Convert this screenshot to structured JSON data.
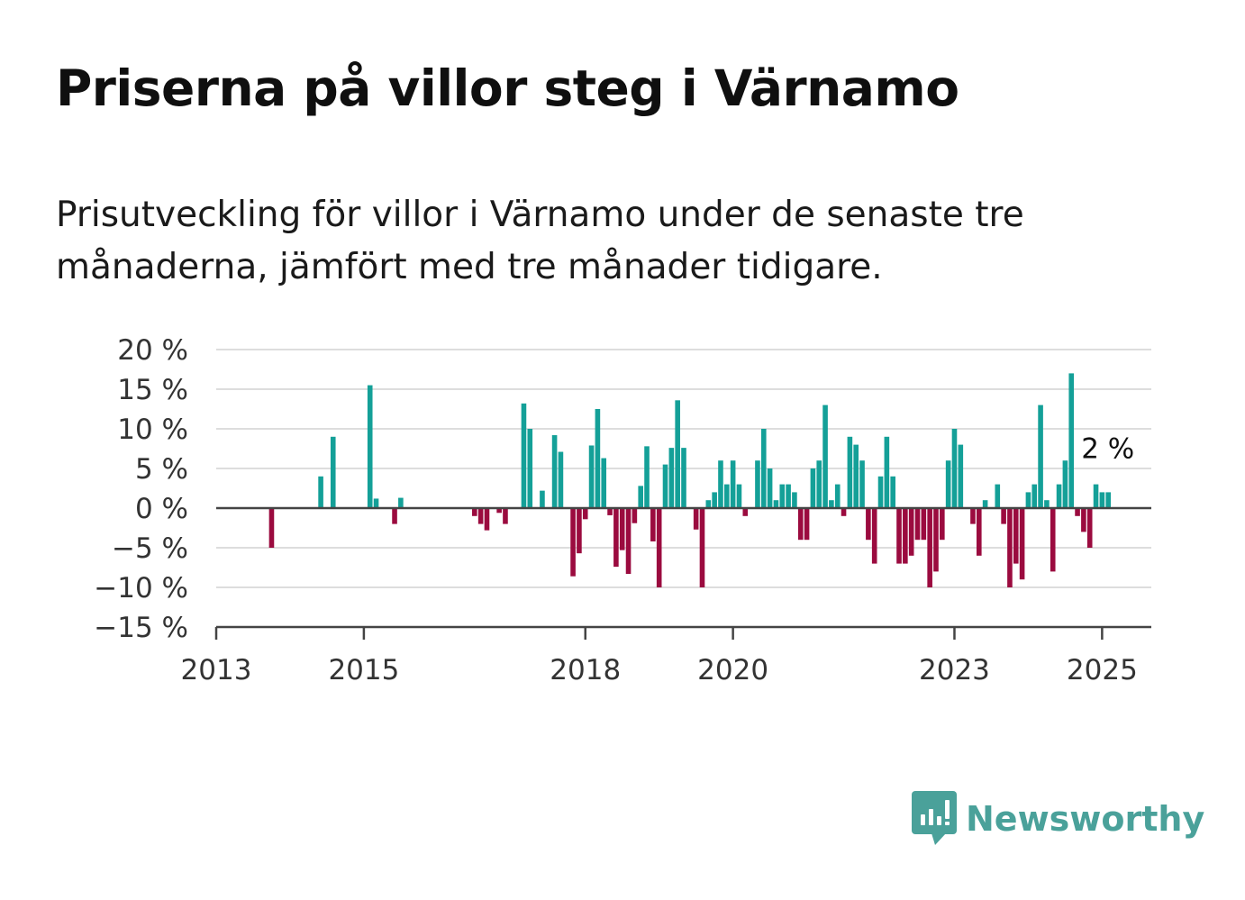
{
  "title": "Priserna på villor steg i Värnamo",
  "subtitle": "Prisutveckling för villor i Värnamo under de senaste tre månaderna, jämfört med tre månader tidigare.",
  "brand": {
    "name": "Newsworthy",
    "icon": "bar-chart-speech-bubble-icon"
  },
  "colors": {
    "positive": "#14a098",
    "negative": "#9b0b3f",
    "grid": "#dddddd",
    "axis": "#444444",
    "brand": "#4aa19a"
  },
  "chart_data": {
    "type": "bar",
    "title": "Priserna på villor steg i Värnamo",
    "xlabel": "",
    "ylabel": "",
    "ylim": [
      -15,
      20
    ],
    "xlim": [
      "2013-01",
      "2025-09"
    ],
    "grid": true,
    "legend": "none",
    "y_ticks": [
      {
        "value": 20,
        "label": "20 %"
      },
      {
        "value": 15,
        "label": "15 %"
      },
      {
        "value": 10,
        "label": "10 %"
      },
      {
        "value": 5,
        "label": "5 %"
      },
      {
        "value": 0,
        "label": "0 %"
      },
      {
        "value": -5,
        "label": "−5 %"
      },
      {
        "value": -10,
        "label": "−10 %"
      },
      {
        "value": -15,
        "label": "−15 %"
      }
    ],
    "x_ticks": [
      {
        "date": "2013-01",
        "label": "2013"
      },
      {
        "date": "2015-01",
        "label": "2015"
      },
      {
        "date": "2018-01",
        "label": "2018"
      },
      {
        "date": "2020-01",
        "label": "2020"
      },
      {
        "date": "2023-01",
        "label": "2023"
      },
      {
        "date": "2025-01",
        "label": "2025"
      }
    ],
    "annotation": {
      "date": "2025-02",
      "value": 2,
      "label": "2 %"
    },
    "series": [
      {
        "points": [
          {
            "x": "2013-10",
            "y": -5
          },
          {
            "x": "2014-06",
            "y": 4
          },
          {
            "x": "2014-08",
            "y": 9
          },
          {
            "x": "2015-02",
            "y": 15.5
          },
          {
            "x": "2015-03",
            "y": 1.2
          },
          {
            "x": "2015-06",
            "y": -2
          },
          {
            "x": "2015-07",
            "y": 1.3
          },
          {
            "x": "2016-07",
            "y": -1
          },
          {
            "x": "2016-08",
            "y": -2
          },
          {
            "x": "2016-09",
            "y": -2.8
          },
          {
            "x": "2016-11",
            "y": -0.6
          },
          {
            "x": "2016-12",
            "y": -2
          },
          {
            "x": "2017-03",
            "y": 13.2
          },
          {
            "x": "2017-04",
            "y": 10
          },
          {
            "x": "2017-06",
            "y": 2.2
          },
          {
            "x": "2017-08",
            "y": 9.2
          },
          {
            "x": "2017-09",
            "y": 7.1
          },
          {
            "x": "2017-11",
            "y": -8.6
          },
          {
            "x": "2017-12",
            "y": -5.7
          },
          {
            "x": "2018-01",
            "y": -1.4
          },
          {
            "x": "2018-02",
            "y": 7.9
          },
          {
            "x": "2018-03",
            "y": 12.5
          },
          {
            "x": "2018-04",
            "y": 6.3
          },
          {
            "x": "2018-05",
            "y": -0.9
          },
          {
            "x": "2018-06",
            "y": -7.4
          },
          {
            "x": "2018-07",
            "y": -5.3
          },
          {
            "x": "2018-08",
            "y": -8.3
          },
          {
            "x": "2018-09",
            "y": -1.9
          },
          {
            "x": "2018-10",
            "y": 2.8
          },
          {
            "x": "2018-11",
            "y": 7.8
          },
          {
            "x": "2018-12",
            "y": -4.2
          },
          {
            "x": "2019-01",
            "y": -10
          },
          {
            "x": "2019-02",
            "y": 5.5
          },
          {
            "x": "2019-03",
            "y": 7.6
          },
          {
            "x": "2019-04",
            "y": 13.6
          },
          {
            "x": "2019-05",
            "y": 7.6
          },
          {
            "x": "2019-07",
            "y": -2.7
          },
          {
            "x": "2019-08",
            "y": -10
          },
          {
            "x": "2019-09",
            "y": 1
          },
          {
            "x": "2019-10",
            "y": 2
          },
          {
            "x": "2019-11",
            "y": 6
          },
          {
            "x": "2019-12",
            "y": 3
          },
          {
            "x": "2020-01",
            "y": 6
          },
          {
            "x": "2020-02",
            "y": 3
          },
          {
            "x": "2020-03",
            "y": -1
          },
          {
            "x": "2020-05",
            "y": 6
          },
          {
            "x": "2020-06",
            "y": 10
          },
          {
            "x": "2020-07",
            "y": 5
          },
          {
            "x": "2020-08",
            "y": 1
          },
          {
            "x": "2020-09",
            "y": 3
          },
          {
            "x": "2020-10",
            "y": 3
          },
          {
            "x": "2020-11",
            "y": 2
          },
          {
            "x": "2020-12",
            "y": -4
          },
          {
            "x": "2021-01",
            "y": -4
          },
          {
            "x": "2021-02",
            "y": 5
          },
          {
            "x": "2021-03",
            "y": 6
          },
          {
            "x": "2021-04",
            "y": 13
          },
          {
            "x": "2021-05",
            "y": 1
          },
          {
            "x": "2021-06",
            "y": 3
          },
          {
            "x": "2021-07",
            "y": -1
          },
          {
            "x": "2021-08",
            "y": 9
          },
          {
            "x": "2021-09",
            "y": 8
          },
          {
            "x": "2021-10",
            "y": 6
          },
          {
            "x": "2021-11",
            "y": -4
          },
          {
            "x": "2021-12",
            "y": -7
          },
          {
            "x": "2022-01",
            "y": 4
          },
          {
            "x": "2022-02",
            "y": 9
          },
          {
            "x": "2022-03",
            "y": 4
          },
          {
            "x": "2022-04",
            "y": -7
          },
          {
            "x": "2022-05",
            "y": -7
          },
          {
            "x": "2022-06",
            "y": -6
          },
          {
            "x": "2022-07",
            "y": -4
          },
          {
            "x": "2022-08",
            "y": -4
          },
          {
            "x": "2022-09",
            "y": -10
          },
          {
            "x": "2022-10",
            "y": -8
          },
          {
            "x": "2022-11",
            "y": -4
          },
          {
            "x": "2022-12",
            "y": 6
          },
          {
            "x": "2023-01",
            "y": 10
          },
          {
            "x": "2023-02",
            "y": 8
          },
          {
            "x": "2023-04",
            "y": -2
          },
          {
            "x": "2023-05",
            "y": -6
          },
          {
            "x": "2023-06",
            "y": 1
          },
          {
            "x": "2023-08",
            "y": 3
          },
          {
            "x": "2023-09",
            "y": -2
          },
          {
            "x": "2023-10",
            "y": -10
          },
          {
            "x": "2023-11",
            "y": -7
          },
          {
            "x": "2023-12",
            "y": -9
          },
          {
            "x": "2024-01",
            "y": 2
          },
          {
            "x": "2024-02",
            "y": 3
          },
          {
            "x": "2024-03",
            "y": 13
          },
          {
            "x": "2024-04",
            "y": 1
          },
          {
            "x": "2024-05",
            "y": -8
          },
          {
            "x": "2024-06",
            "y": 3
          },
          {
            "x": "2024-07",
            "y": 6
          },
          {
            "x": "2024-08",
            "y": 17
          },
          {
            "x": "2024-09",
            "y": -1
          },
          {
            "x": "2024-10",
            "y": -3
          },
          {
            "x": "2024-11",
            "y": -5
          },
          {
            "x": "2024-12",
            "y": 3
          },
          {
            "x": "2025-01",
            "y": 2
          },
          {
            "x": "2025-02",
            "y": 2
          }
        ]
      }
    ]
  }
}
